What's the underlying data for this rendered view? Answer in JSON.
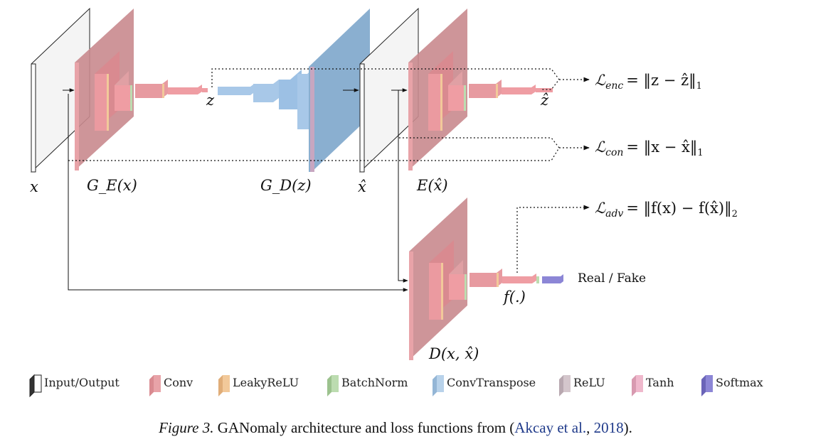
{
  "labels": {
    "x": "x",
    "ge": "G_E(x)",
    "gd": "G_D(z)",
    "xhat": "x̂",
    "e": "E(x̂)",
    "z": "z",
    "zhat": "ẑ",
    "d": "D(x, x̂)",
    "f": "f(.)",
    "real_fake": "Real / Fake"
  },
  "losses": {
    "enc": {
      "sub": "enc",
      "rhs": "= ‖z − ẑ‖",
      "norm": "1"
    },
    "con": {
      "sub": "con",
      "rhs": "= ‖x − x̂‖",
      "norm": "1"
    },
    "adv": {
      "sub": "adv",
      "rhs": "= ‖f(x) − f(x̂)‖",
      "norm": "2"
    }
  },
  "legend": [
    {
      "label": "Input/Output",
      "color": "#ffffff",
      "side": "#333333"
    },
    {
      "label": "Conv",
      "color": "#e8a3a8",
      "side": "#d98a90"
    },
    {
      "label": "LeakyReLU",
      "color": "#f2c99a",
      "side": "#e0ad78"
    },
    {
      "label": "BatchNorm",
      "color": "#bcdcb0",
      "side": "#9cc28e"
    },
    {
      "label": "ConvTranspose",
      "color": "#b8d2ea",
      "side": "#94b6d6"
    },
    {
      "label": "ReLU",
      "color": "#d4c6cc",
      "side": "#b8a8b0"
    },
    {
      "label": "Tanh",
      "color": "#efb8cc",
      "side": "#d89ab0"
    },
    {
      "label": "Softmax",
      "color": "#8c86d6",
      "side": "#6a64b8"
    }
  ],
  "caption": {
    "fig": "Figure 3.",
    "text": " GANomaly architecture and loss functions from (",
    "link": "Akcay et al.",
    "sep": ", ",
    "year": "2018",
    "end": ")."
  }
}
